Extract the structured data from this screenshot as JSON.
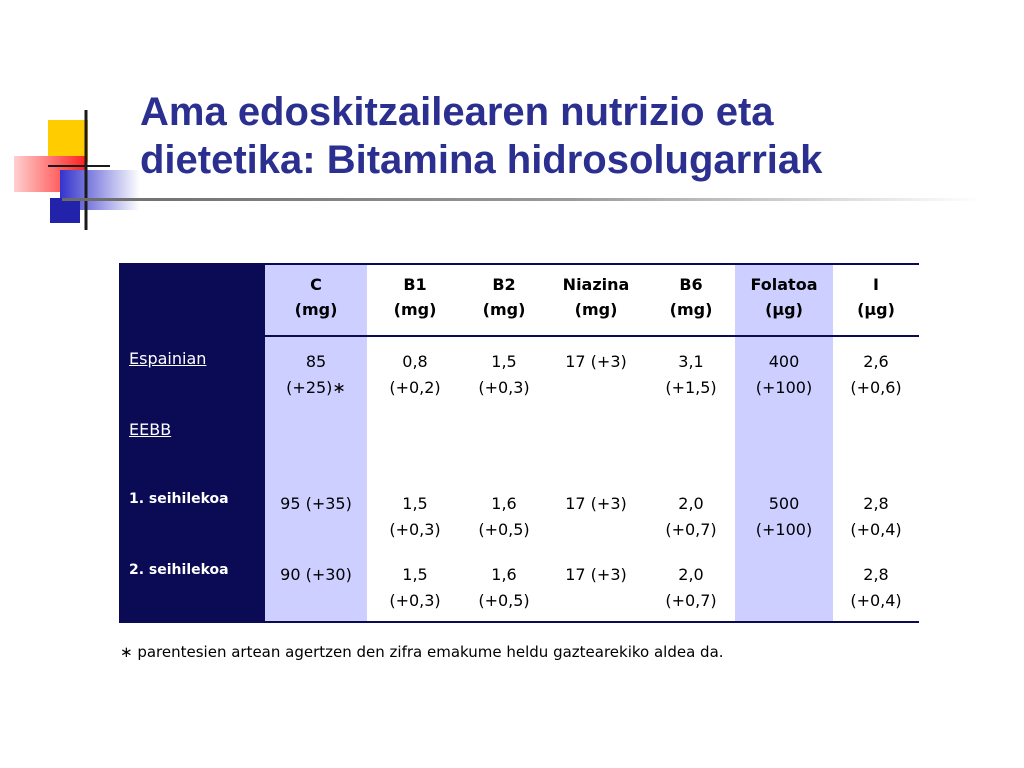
{
  "slide": {
    "title_line1": "Ama edoskitzailearen nutrizio eta",
    "title_line2": "dietetika: Bitamina hidrosolugarriak",
    "footnote": "∗ parentesien artean agertzen den zifra emakume heldu gaztearekiko aldea da."
  },
  "colors": {
    "title": "#2b2f8f",
    "header_dark": "#0b0b55",
    "highlight": "#cccfff"
  },
  "table": {
    "columns": [
      {
        "name": "C",
        "unit": "(mg)"
      },
      {
        "name": "B1",
        "unit": "(mg)"
      },
      {
        "name": "B2",
        "unit": "(mg)"
      },
      {
        "name": "Niazina",
        "unit": "(mg)"
      },
      {
        "name": "B6",
        "unit": "(mg)"
      },
      {
        "name": "Folatoa",
        "unit": "(μg)"
      },
      {
        "name": "I",
        "unit": "(μg)"
      }
    ],
    "rows": [
      {
        "label": "Espainian",
        "cells": [
          [
            "85",
            "(+25)∗"
          ],
          [
            "0,8",
            "(+0,2)"
          ],
          [
            "1,5",
            "(+0,3)"
          ],
          [
            "17 (+3)",
            ""
          ],
          [
            "3,1",
            "(+1,5)"
          ],
          [
            "400",
            "(+100)"
          ],
          [
            "2,6",
            "(+0,6)"
          ]
        ]
      },
      {
        "label": "EEBB",
        "cells": [
          [
            "",
            ""
          ],
          [
            "",
            ""
          ],
          [
            "",
            ""
          ],
          [
            "",
            ""
          ],
          [
            "",
            ""
          ],
          [
            "",
            ""
          ],
          [
            "",
            ""
          ]
        ]
      },
      {
        "label": "1. seihilekoa",
        "cells": [
          [
            "95 (+35)",
            ""
          ],
          [
            "1,5",
            "(+0,3)"
          ],
          [
            "1,6",
            "(+0,5)"
          ],
          [
            "17 (+3)",
            ""
          ],
          [
            "2,0",
            "(+0,7)"
          ],
          [
            "500",
            "(+100)"
          ],
          [
            "2,8",
            "(+0,4)"
          ]
        ]
      },
      {
        "label": "2. seihilekoa",
        "cells": [
          [
            "90 (+30)",
            ""
          ],
          [
            "1,5",
            "(+0,3)"
          ],
          [
            "1,6",
            "(+0,5)"
          ],
          [
            "17 (+3)",
            ""
          ],
          [
            "2,0",
            "(+0,7)"
          ],
          [
            "",
            ""
          ],
          [
            "2,8",
            "(+0,4)"
          ]
        ]
      }
    ]
  }
}
